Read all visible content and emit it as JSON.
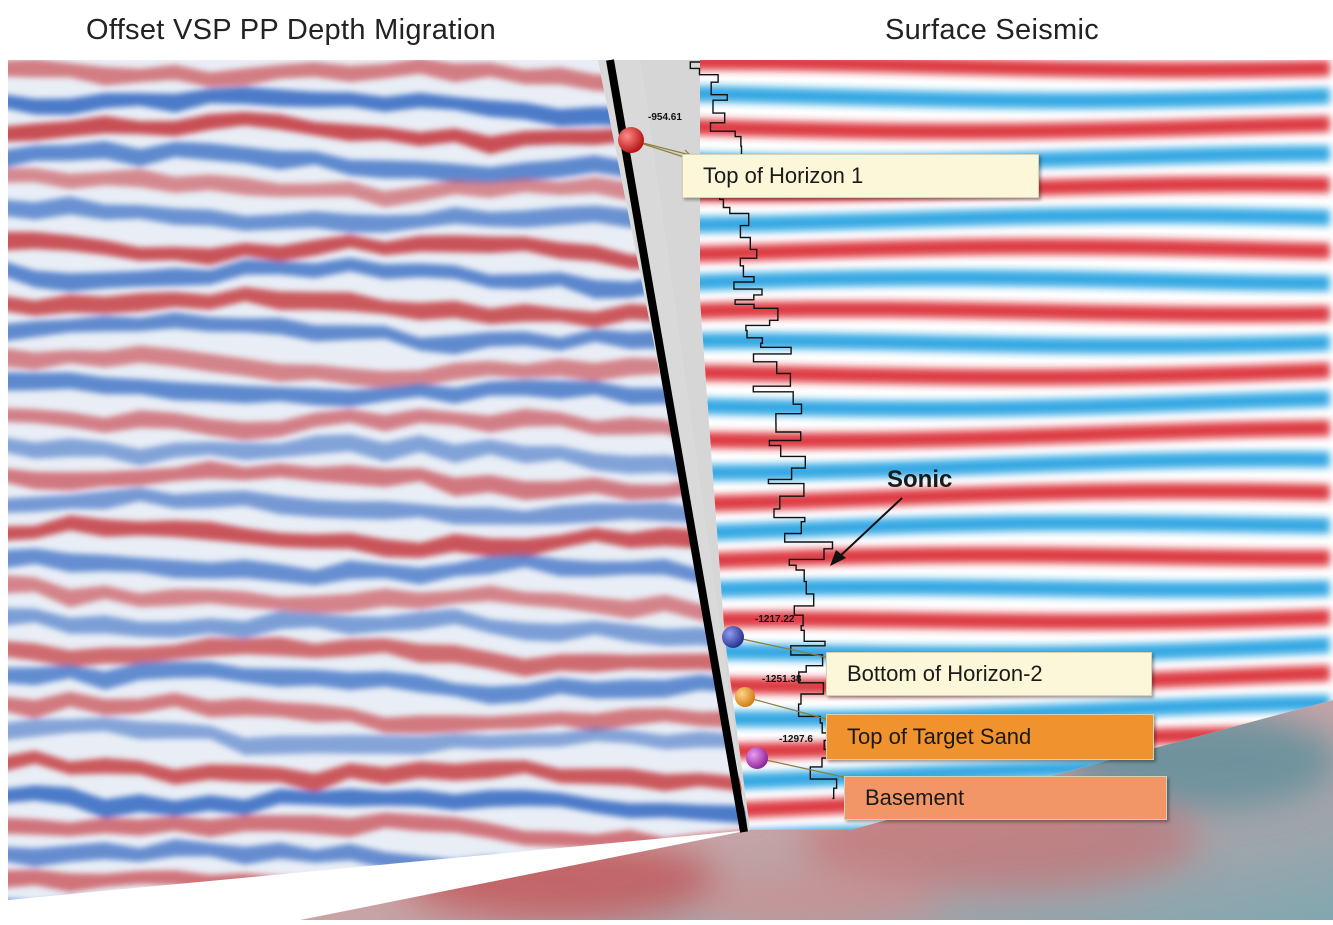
{
  "titles": {
    "left": "Offset VSP PP Depth Migration",
    "right": "Surface Seismic"
  },
  "sonic_label": "Sonic",
  "markers": [
    {
      "name": "top-horizon-1",
      "depth": "-954.61",
      "label": "Top of Horizon 1",
      "marker_color": "#d11a1a",
      "box_color": "#fbf7d8"
    },
    {
      "name": "bottom-horizon-2",
      "depth": "-1217.22",
      "label": "Bottom of Horizon-2",
      "marker_color": "#3140a6",
      "box_color": "#fbf7d8"
    },
    {
      "name": "top-target-sand",
      "depth": "-1251.38",
      "label": "Top of Target Sand",
      "marker_color": "#e9981f",
      "box_color": "#f0922e"
    },
    {
      "name": "basement",
      "depth": "-1297.6",
      "label": "Basement",
      "marker_color": "#b03ab8",
      "box_color": "#f29668"
    }
  ],
  "colors": {
    "seismic_red": "#d9262b",
    "seismic_blue": "#1d9ee0",
    "vsp_red": "#c43a3f",
    "vsp_blue": "#3b6fc4"
  }
}
